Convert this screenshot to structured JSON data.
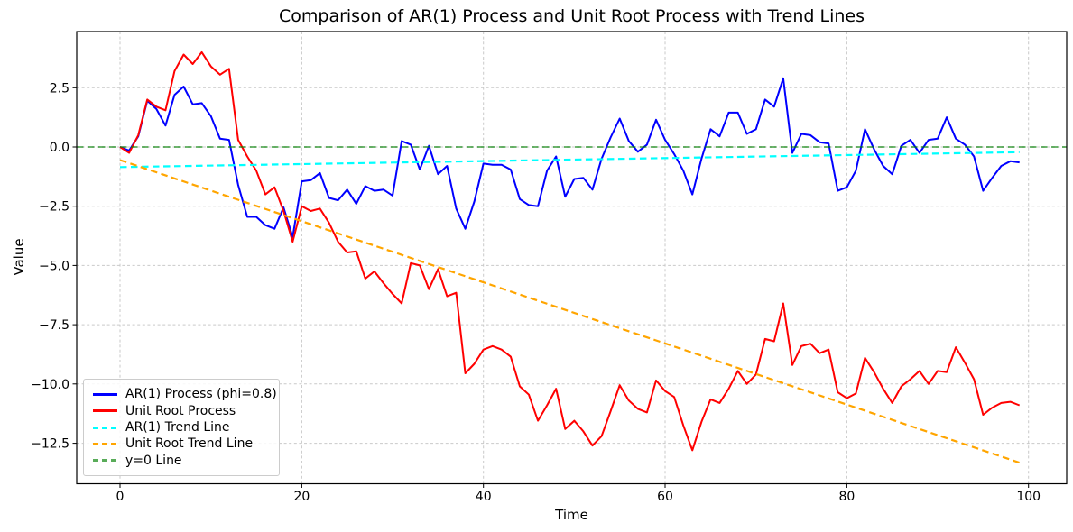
{
  "chart_data": {
    "type": "line",
    "title": "Comparison of AR(1) Process and Unit Root Process with Trend Lines",
    "xlabel": "Time",
    "ylabel": "Value",
    "xlim": [
      -4.77,
      104.2
    ],
    "ylim": [
      -14.21,
      4.87
    ],
    "grid": true,
    "legend_position": "lower left",
    "x_tick_values": [
      0,
      20,
      40,
      60,
      80,
      100
    ],
    "x_tick_labels": [
      "0",
      "20",
      "40",
      "60",
      "80",
      "100"
    ],
    "y_tick_values": [
      2.5,
      0.0,
      -2.5,
      -5.0,
      -7.5,
      -10.0,
      -12.5
    ],
    "y_tick_labels": [
      "2.5",
      "0.0",
      "−2.5",
      "−5.0",
      "−7.5",
      "−10.0",
      "−12.5"
    ],
    "series": [
      {
        "id": "ar1-process",
        "name": "AR(1) Process (phi=0.8)",
        "color": "#0000ff",
        "style": "solid",
        "width": 2,
        "values": [
          0.0,
          -0.15,
          0.45,
          1.95,
          1.6,
          0.9,
          2.2,
          2.55,
          1.8,
          1.85,
          1.3,
          0.35,
          0.3,
          -1.6,
          -2.95,
          -2.95,
          -3.3,
          -3.45,
          -2.55,
          -3.8,
          -1.45,
          -1.4,
          -1.1,
          -2.15,
          -2.25,
          -1.8,
          -2.4,
          -1.65,
          -1.85,
          -1.8,
          -2.05,
          0.25,
          0.1,
          -0.95,
          0.05,
          -1.15,
          -0.8,
          -2.6,
          -3.45,
          -2.3,
          -0.7,
          -0.75,
          -0.75,
          -0.95,
          -2.2,
          -2.45,
          -2.5,
          -1.0,
          -0.4,
          -2.1,
          -1.35,
          -1.3,
          -1.8,
          -0.5,
          0.4,
          1.2,
          0.25,
          -0.2,
          0.1,
          1.15,
          0.3,
          -0.3,
          -1.0,
          -2.0,
          -0.5,
          0.75,
          0.45,
          1.45,
          1.45,
          0.55,
          0.75,
          2.0,
          1.7,
          2.9,
          -0.25,
          0.55,
          0.5,
          0.2,
          0.15,
          -1.85,
          -1.7,
          -1.0,
          0.75,
          -0.1,
          -0.8,
          -1.15,
          0.05,
          0.3,
          -0.25,
          0.3,
          0.35,
          1.25,
          0.35,
          0.1,
          -0.4,
          -1.85,
          -1.3,
          -0.8,
          -0.6,
          -0.65
        ]
      },
      {
        "id": "unit-root-process",
        "name": "Unit Root Process",
        "color": "#ff0000",
        "style": "solid",
        "width": 2,
        "values": [
          0.0,
          -0.25,
          0.5,
          2.0,
          1.7,
          1.55,
          3.2,
          3.9,
          3.5,
          4.0,
          3.4,
          3.05,
          3.3,
          0.3,
          -0.4,
          -1.0,
          -2.0,
          -1.7,
          -2.7,
          -4.0,
          -2.5,
          -2.7,
          -2.6,
          -3.2,
          -4.0,
          -4.45,
          -4.4,
          -5.55,
          -5.25,
          -5.75,
          -6.2,
          -6.6,
          -4.9,
          -5.0,
          -6.0,
          -5.15,
          -6.3,
          -6.15,
          -9.55,
          -9.15,
          -8.55,
          -8.4,
          -8.55,
          -8.85,
          -10.1,
          -10.45,
          -11.55,
          -10.9,
          -10.2,
          -11.9,
          -11.55,
          -12.0,
          -12.6,
          -12.2,
          -11.15,
          -10.05,
          -10.7,
          -11.05,
          -11.2,
          -9.85,
          -10.3,
          -10.55,
          -11.75,
          -12.8,
          -11.6,
          -10.65,
          -10.8,
          -10.2,
          -9.45,
          -10.0,
          -9.6,
          -8.1,
          -8.2,
          -6.6,
          -9.2,
          -8.4,
          -8.3,
          -8.7,
          -8.55,
          -10.35,
          -10.6,
          -10.4,
          -8.9,
          -9.5,
          -10.2,
          -10.8,
          -10.1,
          -9.8,
          -9.45,
          -10.0,
          -9.45,
          -9.5,
          -8.45,
          -9.1,
          -9.8,
          -11.3,
          -11.0,
          -10.8,
          -10.75,
          -10.9
        ]
      },
      {
        "id": "ar1-trend",
        "name": "AR(1) Trend Line",
        "color": "#00ffff",
        "style": "dashed",
        "width": 2.2,
        "points": [
          [
            0,
            -0.85
          ],
          [
            99,
            -0.22
          ]
        ]
      },
      {
        "id": "unit-root-trend",
        "name": "Unit Root Trend Line",
        "color": "#ffa500",
        "style": "dashed",
        "width": 2.2,
        "points": [
          [
            0,
            -0.55
          ],
          [
            99,
            -13.32
          ]
        ]
      },
      {
        "id": "zero-line",
        "name": "y=0 Line",
        "color": "#008000",
        "style": "dashed",
        "width": 1.7,
        "opacity": 0.65,
        "hline": 0
      }
    ]
  }
}
